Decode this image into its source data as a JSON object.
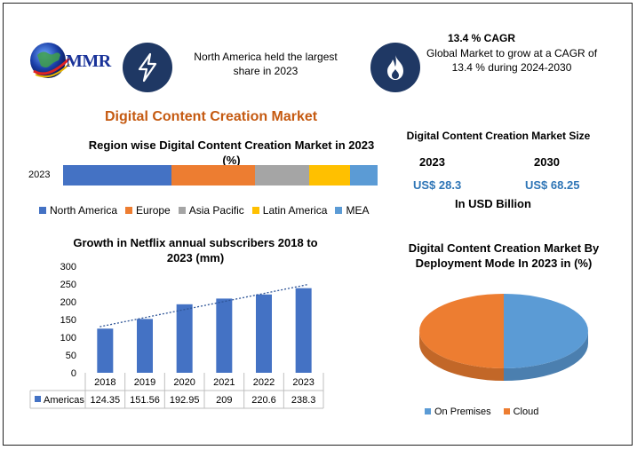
{
  "brand": {
    "name": "MMR"
  },
  "header": {
    "highlight_text": "North America held the largest share in 2023",
    "cagr_title": "13.4 % CAGR",
    "cagr_text": "Global Market to grow at a CAGR of 13.4 % during 2024-2030",
    "icon_left": "lightning-icon",
    "icon_right": "flame-icon",
    "icon_color": "#1f3864"
  },
  "main_title": "Digital Content Creation Market",
  "market_size": {
    "title": "Digital Content Creation Market Size",
    "years": [
      "2023",
      "2030"
    ],
    "values": [
      "US$ 28.3",
      "US$ 68.25"
    ],
    "unit": "In USD Billion"
  },
  "chart_data": [
    {
      "type": "bar",
      "orientation": "horizontal-stacked",
      "title": "Region wise Digital Content Creation  Market in 2023 (%)",
      "categories": [
        "2023"
      ],
      "series": [
        {
          "name": "North America",
          "values": [
            30
          ],
          "color": "#4472c4"
        },
        {
          "name": "Europe",
          "values": [
            23
          ],
          "color": "#ed7d31"
        },
        {
          "name": "Asia Pacific",
          "values": [
            15
          ],
          "color": "#a5a5a5"
        },
        {
          "name": "Latin America",
          "values": [
            11.5
          ],
          "color": "#ffc000"
        },
        {
          "name": "MEA",
          "values": [
            7.5
          ],
          "color": "#5b9bd5"
        }
      ],
      "legend": "bottom"
    },
    {
      "type": "bar",
      "title": "Growth in Netflix annual subscribers 2018 to 2023 (mm)",
      "categories": [
        "2018",
        "2019",
        "2020",
        "2021",
        "2022",
        "2023"
      ],
      "series": [
        {
          "name": "Americas",
          "values": [
            124.35,
            151.56,
            192.95,
            209,
            220.6,
            238.3
          ],
          "value_labels": [
            "124.35",
            "151.56",
            "192.95",
            "209",
            "220.6",
            "238.3"
          ],
          "color": "#4472c4"
        }
      ],
      "ylim": [
        0,
        300
      ],
      "yticks": [
        0,
        50,
        100,
        150,
        200,
        250,
        300
      ],
      "trendline": "linear dotted",
      "data_table": true
    },
    {
      "type": "pie",
      "style": "3d",
      "title": "Digital Content Creation  Market By Deployment Mode In 2023 in (%)",
      "labels": [
        "On Premises",
        "Cloud"
      ],
      "values": [
        50,
        50
      ],
      "colors": [
        "#5b9bd5",
        "#ed7d31"
      ],
      "legend": "bottom"
    }
  ]
}
